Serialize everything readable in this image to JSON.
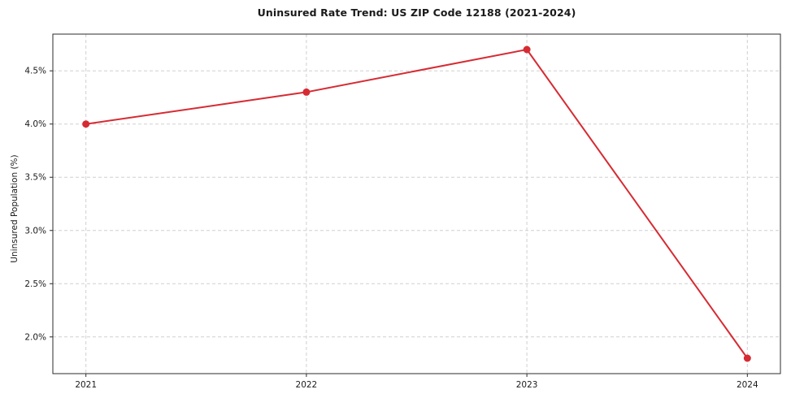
{
  "chart_data": {
    "type": "line",
    "title": "Uninsured Rate Trend: US ZIP Code 12188 (2021-2024)",
    "xlabel": "",
    "ylabel": "Uninsured Population (%)",
    "x": [
      2021,
      2022,
      2023,
      2024
    ],
    "values": [
      4.0,
      4.3,
      4.7,
      1.8
    ],
    "xlim": [
      2020.85,
      2024.15
    ],
    "ylim": [
      1.655,
      4.845
    ],
    "xticks": [
      2021,
      2022,
      2023,
      2024
    ],
    "xtick_labels": [
      "2021",
      "2022",
      "2023",
      "2024"
    ],
    "yticks": [
      2.0,
      2.5,
      3.0,
      3.5,
      4.0,
      4.5
    ],
    "ytick_labels": [
      "2.0%",
      "2.5%",
      "3.0%",
      "3.5%",
      "4.0%",
      "4.5%"
    ],
    "line_color": "#d62b33",
    "grid": true,
    "grid_color": "#d0d0d0",
    "legend": "none",
    "marker": "circle"
  }
}
